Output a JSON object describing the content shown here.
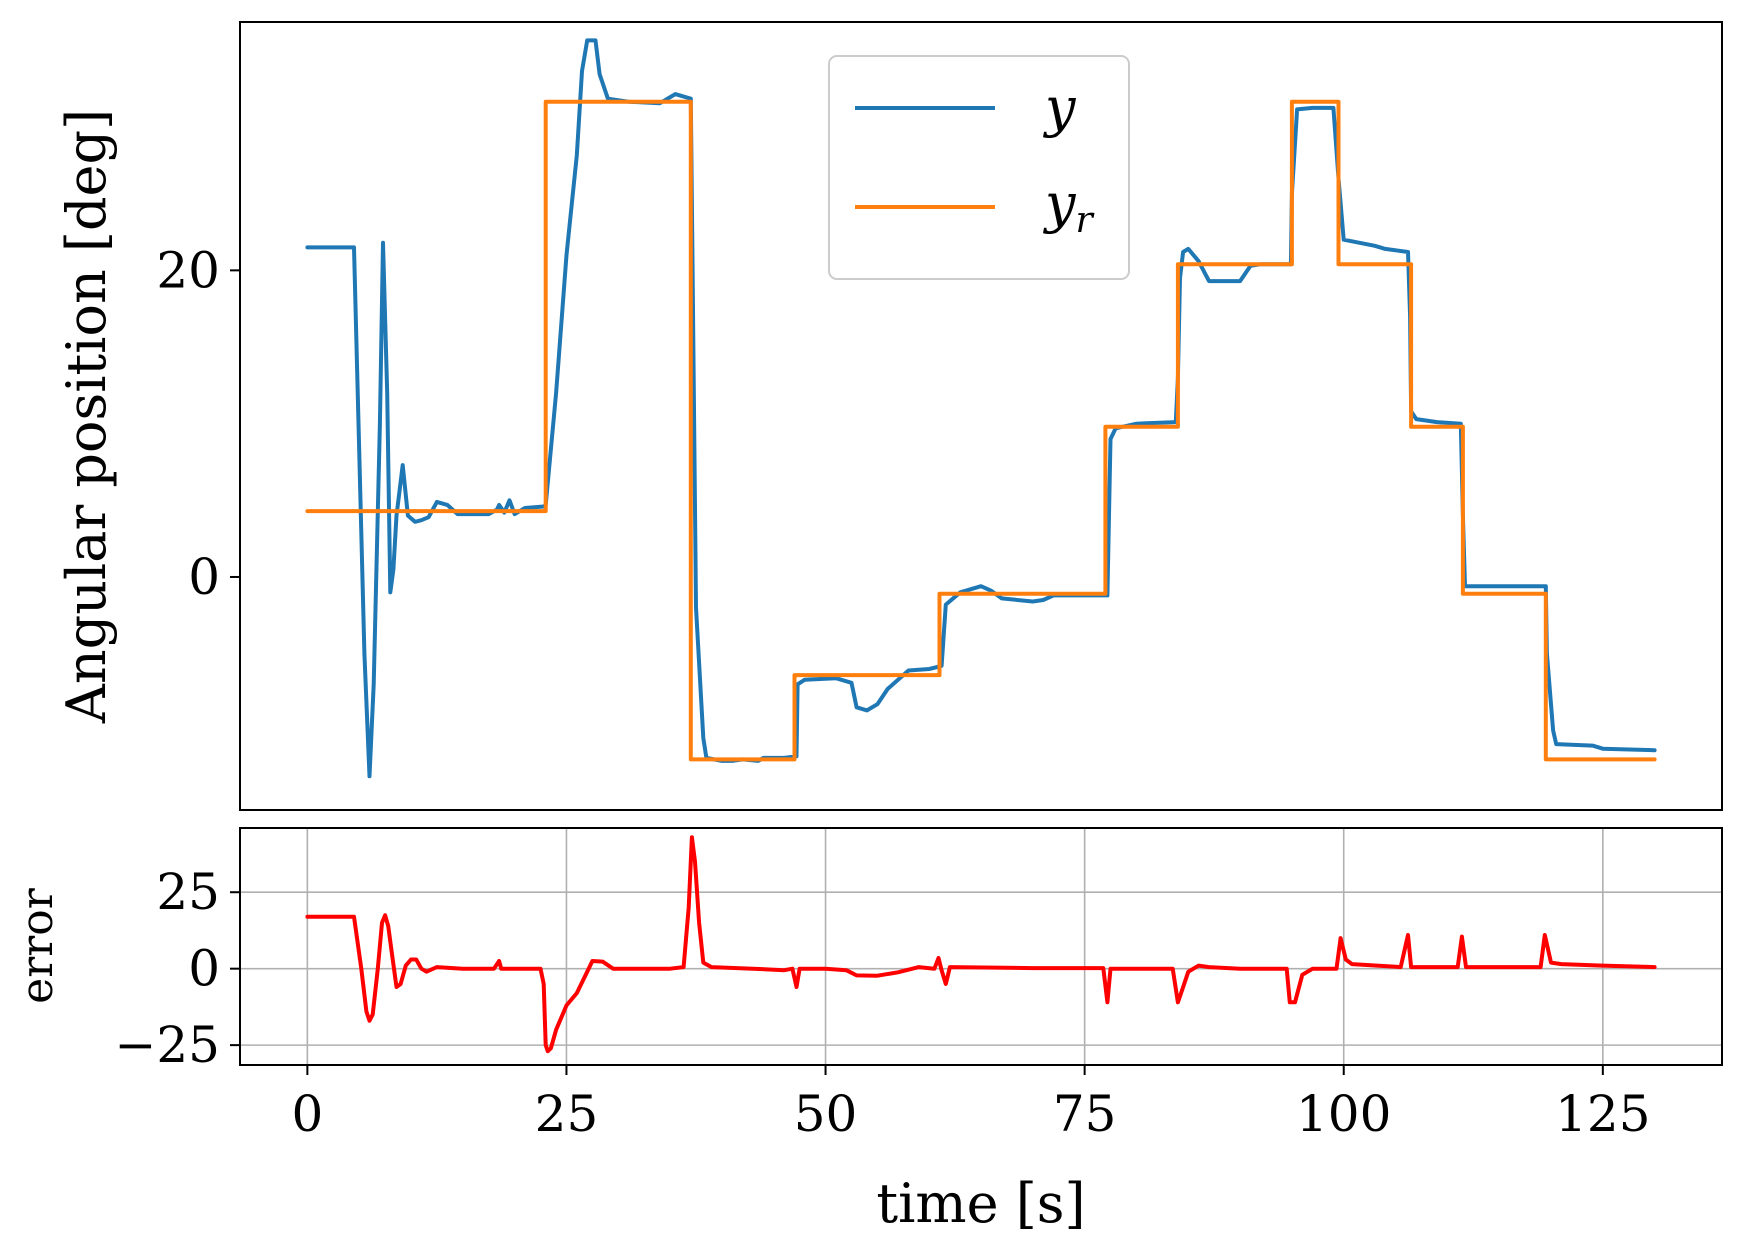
{
  "chart_data": [
    {
      "type": "line",
      "ylabel": "Angular position [deg]",
      "xlim": [
        -6.5,
        136.5
      ],
      "ylim": [
        -15.2,
        36.2
      ],
      "xticks": [],
      "yticks": [
        {
          "value": 0,
          "label": "0"
        },
        {
          "value": 20,
          "label": "20"
        }
      ],
      "grid": false,
      "legend": {
        "placement": "upper-center",
        "entries": [
          {
            "series": "y",
            "label": "y",
            "sub": ""
          },
          {
            "series": "yr",
            "label": "y",
            "sub": "r"
          }
        ]
      },
      "series": [
        {
          "name": "y",
          "color": "#1f77b4",
          "points": [
            [
              0,
              21.5
            ],
            [
              4.5,
              21.5
            ],
            [
              5.5,
              -5
            ],
            [
              6,
              -13
            ],
            [
              6.4,
              -7
            ],
            [
              7,
              10
            ],
            [
              7.3,
              21.8
            ],
            [
              7.7,
              12
            ],
            [
              8,
              -1
            ],
            [
              8.3,
              0.5
            ],
            [
              8.6,
              4
            ],
            [
              9.2,
              7.3
            ],
            [
              9.7,
              4
            ],
            [
              10.4,
              3.6
            ],
            [
              11,
              3.7
            ],
            [
              11.7,
              3.9
            ],
            [
              12.5,
              4.9
            ],
            [
              13.5,
              4.7
            ],
            [
              14.5,
              4.1
            ],
            [
              16,
              4.1
            ],
            [
              17.5,
              4.1
            ],
            [
              18.3,
              4.4
            ],
            [
              18.5,
              4.7
            ],
            [
              19,
              4.2
            ],
            [
              19.5,
              5.0
            ],
            [
              20,
              4.1
            ],
            [
              21,
              4.5
            ],
            [
              22.8,
              4.6
            ],
            [
              23,
              4.7
            ],
            [
              24,
              12
            ],
            [
              25,
              21
            ],
            [
              26,
              27.5
            ],
            [
              26.5,
              33
            ],
            [
              27,
              35
            ],
            [
              27.8,
              35
            ],
            [
              28.2,
              32.8
            ],
            [
              29,
              31.2
            ],
            [
              31,
              31
            ],
            [
              34,
              30.9
            ],
            [
              35.5,
              31.5
            ],
            [
              37,
              31.2
            ],
            [
              37.2,
              18
            ],
            [
              37.5,
              -2
            ],
            [
              38.2,
              -10.5
            ],
            [
              38.5,
              -11.8
            ],
            [
              40,
              -12
            ],
            [
              41,
              -12
            ],
            [
              42,
              -11.9
            ],
            [
              43.5,
              -12.0
            ],
            [
              44,
              -11.8
            ],
            [
              46,
              -11.8
            ],
            [
              47.2,
              -11.7
            ],
            [
              47.3,
              -7
            ],
            [
              48,
              -6.7
            ],
            [
              51,
              -6.6
            ],
            [
              52.5,
              -6.9
            ],
            [
              53,
              -8.5
            ],
            [
              54,
              -8.7
            ],
            [
              55,
              -8.3
            ],
            [
              56,
              -7.3
            ],
            [
              58,
              -6.1
            ],
            [
              60,
              -6.0
            ],
            [
              61.2,
              -5.8
            ],
            [
              61.6,
              -1.8
            ],
            [
              63,
              -1
            ],
            [
              65,
              -0.6
            ],
            [
              66,
              -0.9
            ],
            [
              67,
              -1.4
            ],
            [
              70,
              -1.6
            ],
            [
              71,
              -1.5
            ],
            [
              72,
              -1.2
            ],
            [
              74,
              -1.2
            ],
            [
              77.2,
              -1.2
            ],
            [
              77.5,
              9
            ],
            [
              78,
              9.7
            ],
            [
              80,
              10
            ],
            [
              83.8,
              10.1
            ],
            [
              84,
              13
            ],
            [
              84.2,
              19.5
            ],
            [
              84.5,
              21.2
            ],
            [
              85,
              21.4
            ],
            [
              86,
              20.6
            ],
            [
              87,
              19.3
            ],
            [
              90,
              19.3
            ],
            [
              91,
              20.3
            ],
            [
              92,
              20.4
            ],
            [
              94.9,
              20.4
            ],
            [
              95,
              25
            ],
            [
              95.5,
              30.5
            ],
            [
              97,
              30.6
            ],
            [
              99,
              30.6
            ],
            [
              99.5,
              26
            ],
            [
              100,
              22
            ],
            [
              103,
              21.6
            ],
            [
              104,
              21.4
            ],
            [
              106.2,
              21.2
            ],
            [
              106.4,
              17
            ],
            [
              106.5,
              10.8
            ],
            [
              107,
              10.3
            ],
            [
              109,
              10.1
            ],
            [
              111.3,
              10
            ],
            [
              111.5,
              4
            ],
            [
              111.7,
              -0.6
            ],
            [
              112,
              -0.6
            ],
            [
              117,
              -0.6
            ],
            [
              119.5,
              -0.6
            ],
            [
              119.6,
              -5
            ],
            [
              120.2,
              -10
            ],
            [
              120.5,
              -10.9
            ],
            [
              124,
              -11.0
            ],
            [
              125,
              -11.2
            ],
            [
              130,
              -11.3
            ]
          ]
        },
        {
          "name": "yr",
          "color": "#ff7f0e",
          "points": [
            [
              0,
              4.3
            ],
            [
              23,
              4.3
            ],
            [
              23,
              31.0
            ],
            [
              37,
              31.0
            ],
            [
              37,
              -11.9
            ],
            [
              47,
              -11.9
            ],
            [
              47,
              -6.4
            ],
            [
              61,
              -6.4
            ],
            [
              61,
              -1.1
            ],
            [
              77,
              -1.1
            ],
            [
              77,
              9.8
            ],
            [
              84,
              9.8
            ],
            [
              84,
              20.4
            ],
            [
              95,
              20.4
            ],
            [
              95,
              31.0
            ],
            [
              99.5,
              31.0
            ],
            [
              99.5,
              20.4
            ],
            [
              106.5,
              20.4
            ],
            [
              106.5,
              9.8
            ],
            [
              111.5,
              9.8
            ],
            [
              111.5,
              -1.1
            ],
            [
              119.5,
              -1.1
            ],
            [
              119.5,
              -11.9
            ],
            [
              130,
              -11.9
            ]
          ]
        }
      ]
    },
    {
      "type": "line",
      "xlabel": "time [s]",
      "ylabel": "error",
      "xlim": [
        -6.5,
        136.5
      ],
      "ylim": [
        -31.5,
        46
      ],
      "xticks": [
        {
          "value": 0,
          "label": "0"
        },
        {
          "value": 25,
          "label": "25"
        },
        {
          "value": 50,
          "label": "50"
        },
        {
          "value": 75,
          "label": "75"
        },
        {
          "value": 100,
          "label": "100"
        },
        {
          "value": 125,
          "label": "125"
        }
      ],
      "yticks": [
        {
          "value": 25,
          "label": "25"
        },
        {
          "value": 0,
          "label": "0"
        },
        {
          "value": -25,
          "label": "−25"
        }
      ],
      "grid": true,
      "series": [
        {
          "name": "error",
          "color": "#ff0000",
          "points": [
            [
              0,
              17
            ],
            [
              4.5,
              17
            ],
            [
              5.2,
              0
            ],
            [
              5.7,
              -14
            ],
            [
              6,
              -17
            ],
            [
              6.3,
              -15
            ],
            [
              6.8,
              0
            ],
            [
              7.2,
              15
            ],
            [
              7.5,
              17.5
            ],
            [
              7.8,
              14
            ],
            [
              8.2,
              4
            ],
            [
              8.6,
              -6
            ],
            [
              9,
              -5
            ],
            [
              9.5,
              1
            ],
            [
              10,
              3
            ],
            [
              10.5,
              3
            ],
            [
              11,
              0
            ],
            [
              11.5,
              -1
            ],
            [
              12.5,
              0.5
            ],
            [
              15,
              0
            ],
            [
              18,
              0
            ],
            [
              18.5,
              2.5
            ],
            [
              18.7,
              0
            ],
            [
              22.5,
              0
            ],
            [
              22.8,
              -5
            ],
            [
              23,
              -25
            ],
            [
              23.2,
              -27
            ],
            [
              23.5,
              -26
            ],
            [
              24,
              -20
            ],
            [
              25,
              -12
            ],
            [
              26,
              -8
            ],
            [
              27,
              -1
            ],
            [
              27.5,
              2.5
            ],
            [
              28.5,
              2.3
            ],
            [
              29.5,
              0
            ],
            [
              35,
              0
            ],
            [
              36.3,
              0.5
            ],
            [
              36.8,
              20
            ],
            [
              37.1,
              43
            ],
            [
              37.4,
              35
            ],
            [
              37.8,
              15
            ],
            [
              38.2,
              2
            ],
            [
              39,
              0.5
            ],
            [
              43,
              0
            ],
            [
              46,
              -0.5
            ],
            [
              46.8,
              0
            ],
            [
              47.2,
              -6
            ],
            [
              47.5,
              0
            ],
            [
              50,
              0
            ],
            [
              52,
              -0.5
            ],
            [
              53,
              -2.2
            ],
            [
              55,
              -2.3
            ],
            [
              57,
              -1.2
            ],
            [
              59,
              0.5
            ],
            [
              60.5,
              0
            ],
            [
              60.9,
              3.5
            ],
            [
              61.2,
              -0.5
            ],
            [
              61.6,
              -5
            ],
            [
              62,
              0.5
            ],
            [
              70,
              0.2
            ],
            [
              76.8,
              0.2
            ],
            [
              77.2,
              -11
            ],
            [
              77.5,
              0
            ],
            [
              83.5,
              0
            ],
            [
              84,
              -11
            ],
            [
              84.4,
              -7
            ],
            [
              85,
              -1
            ],
            [
              86,
              1
            ],
            [
              87,
              0.5
            ],
            [
              90,
              0
            ],
            [
              94.5,
              0
            ],
            [
              94.8,
              -11
            ],
            [
              95.3,
              -11
            ],
            [
              96,
              -2
            ],
            [
              97,
              0
            ],
            [
              99.3,
              0
            ],
            [
              99.7,
              10
            ],
            [
              100.2,
              3
            ],
            [
              100.8,
              1.5
            ],
            [
              105.5,
              0.5
            ],
            [
              106.2,
              11
            ],
            [
              106.5,
              0.5
            ],
            [
              111,
              0.5
            ],
            [
              111.4,
              10.5
            ],
            [
              111.8,
              0.5
            ],
            [
              119,
              0.5
            ],
            [
              119.4,
              11
            ],
            [
              120,
              2
            ],
            [
              121,
              1.5
            ],
            [
              125,
              1
            ],
            [
              130,
              0.5
            ]
          ]
        }
      ]
    }
  ]
}
